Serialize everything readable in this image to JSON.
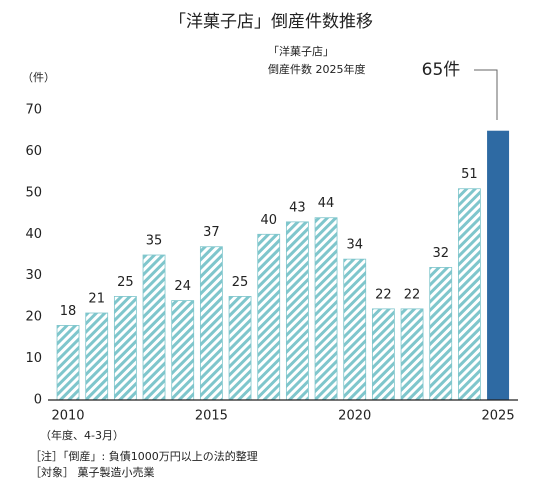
{
  "chart_data": {
    "type": "bar",
    "title": "「洋菓子店」倒産件数推移",
    "annotation_lines": [
      "「洋菓子店」",
      "倒産件数 2025年度"
    ],
    "y_unit": "（件）",
    "x_note": "（年度、4-3月）",
    "footnotes": [
      "［注］「倒産」: 負債1000万円以上の法的整理",
      "［対象］ 菓子製造小売業"
    ],
    "categories": [
      "2010",
      null,
      null,
      null,
      null,
      "2015",
      null,
      null,
      null,
      null,
      "2020",
      null,
      null,
      null,
      null,
      "2025"
    ],
    "values": [
      18,
      21,
      25,
      35,
      24,
      37,
      25,
      40,
      43,
      44,
      34,
      22,
      22,
      32,
      51,
      65
    ],
    "value_labels": [
      "18",
      "21",
      "25",
      "35",
      "24",
      "37",
      "25",
      "40",
      "43",
      "44",
      "34",
      "22",
      "22",
      "32",
      "51",
      "65件"
    ],
    "colors": [
      "#7fc6cc",
      "#7fc6cc",
      "#7fc6cc",
      "#7fc6cc",
      "#7fc6cc",
      "#7fc6cc",
      "#7fc6cc",
      "#7fc6cc",
      "#7fc6cc",
      "#7fc6cc",
      "#7fc6cc",
      "#7fc6cc",
      "#7fc6cc",
      "#7fc6cc",
      "#7fc6cc",
      "#2e6aa3"
    ],
    "hatched": [
      true,
      true,
      true,
      true,
      true,
      true,
      true,
      true,
      true,
      true,
      true,
      true,
      true,
      true,
      true,
      false
    ],
    "ylim": [
      0,
      70
    ],
    "yticks": [
      0,
      10,
      20,
      30,
      40,
      50,
      60,
      70
    ],
    "grid": false
  }
}
